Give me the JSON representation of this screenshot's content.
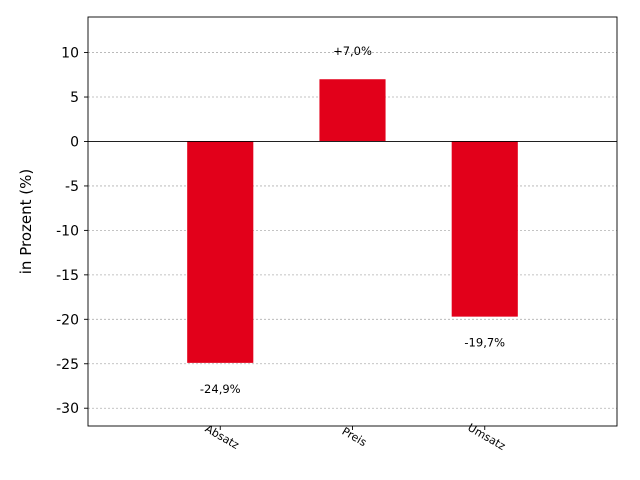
{
  "chart_data": {
    "type": "bar",
    "title": "",
    "xlabel": "",
    "ylabel": "in Prozent (%)",
    "categories": [
      "Absatz",
      "Preis",
      "Umsatz"
    ],
    "values": [
      -24.9,
      7.0,
      -19.7
    ],
    "data_labels": [
      "-24,9%",
      "+7,0%",
      "-19,7%"
    ],
    "ylim": [
      -32,
      14
    ],
    "yticks": [
      10,
      5,
      0,
      -5,
      -10,
      -15,
      -20,
      -25,
      -30
    ],
    "xlim": [
      0,
      4
    ],
    "grid": true,
    "bar_color": "#e2001a"
  }
}
